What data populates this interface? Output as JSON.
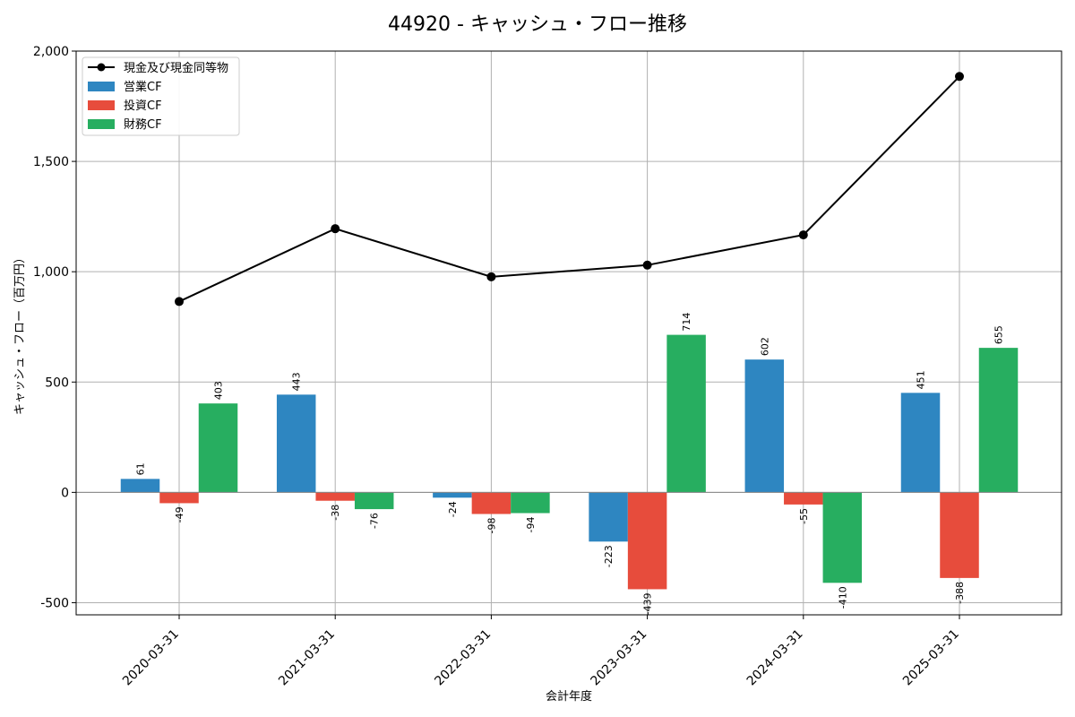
{
  "chart_data": {
    "type": "bar",
    "title": "44920 - キャッシュ・フロー推移",
    "xlabel": "会計年度",
    "ylabel": "キャッシュ・フロー（百万円）",
    "ylim": [
      -555,
      2000
    ],
    "yticks": [
      -500,
      0,
      500,
      1000,
      1500,
      2000
    ],
    "ytick_labels": [
      "-500",
      "0",
      "500",
      "1,000",
      "1,500",
      "2,000"
    ],
    "grid": true,
    "legend_position": "top-left",
    "categories": [
      "2020-03-31",
      "2021-03-31",
      "2022-03-31",
      "2023-03-31",
      "2024-03-31",
      "2025-03-31"
    ],
    "series": [
      {
        "name": "営業CF",
        "kind": "bar",
        "color": "#2e86c1",
        "values": [
          61,
          443,
          -24,
          -223,
          602,
          451
        ]
      },
      {
        "name": "投資CF",
        "kind": "bar",
        "color": "#e74c3c",
        "values": [
          -49,
          -38,
          -98,
          -439,
          -55,
          -388
        ]
      },
      {
        "name": "財務CF",
        "kind": "bar",
        "color": "#27ae60",
        "values": [
          403,
          -76,
          -94,
          714,
          -410,
          655
        ]
      }
    ],
    "line_series": {
      "name": "現金及び現金同等物",
      "color": "#000000",
      "values": [
        865,
        1195,
        977,
        1030,
        1167,
        1885
      ]
    }
  }
}
